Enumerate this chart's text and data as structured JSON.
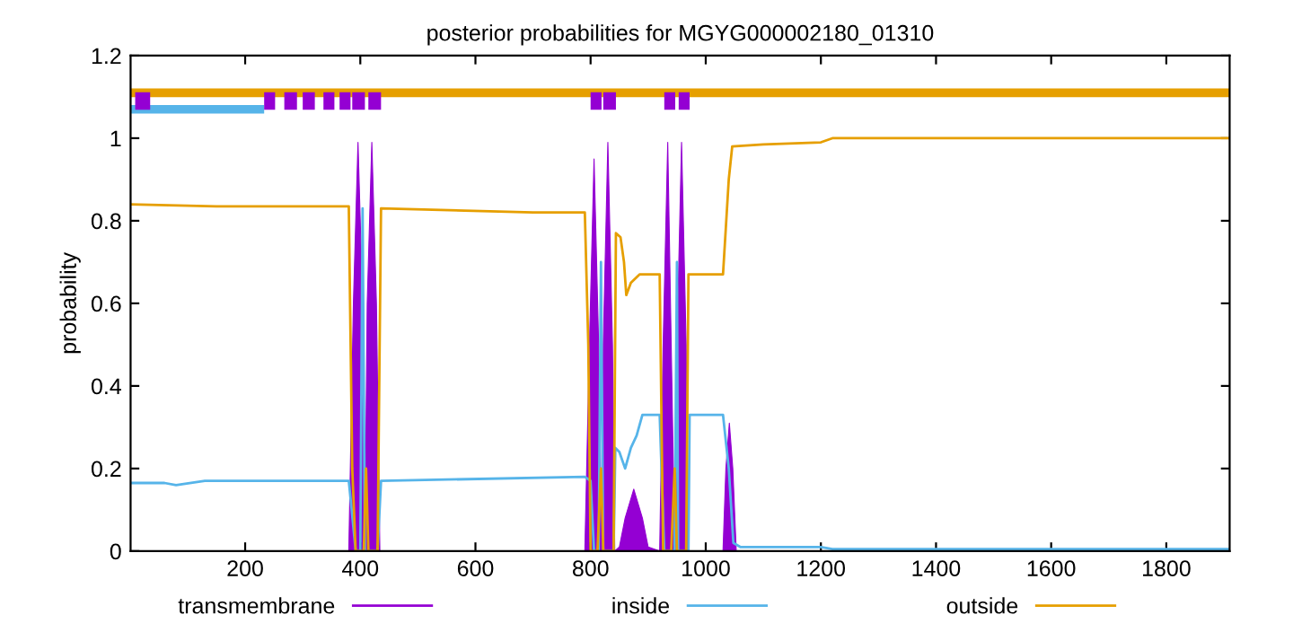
{
  "chart_data": {
    "type": "line",
    "title": "posterior probabilities for MGYG000002180_01310",
    "ylabel": "probability",
    "xlim": [
      1,
      1910
    ],
    "xticks": [
      200,
      400,
      600,
      800,
      1000,
      1200,
      1400,
      1600,
      1800
    ],
    "ylim": [
      0,
      1.2
    ],
    "yticks": [
      0,
      0.2,
      0.4,
      0.6,
      0.8,
      1,
      1.2
    ],
    "grid": false,
    "legend": "bottom",
    "series": [
      {
        "name": "transmembrane",
        "type": "area",
        "color": "#9400d3",
        "x": [
          1,
          380,
          388,
          396,
          404,
          408,
          412,
          420,
          428,
          434,
          790,
          798,
          806,
          814,
          818,
          822,
          830,
          838,
          842,
          850,
          860,
          875,
          890,
          900,
          920,
          926,
          934,
          940,
          946,
          950,
          958,
          966,
          970,
          1030,
          1035,
          1041,
          1047,
          1053,
          1910
        ],
        "values": [
          0,
          0,
          0.6,
          0.99,
          0.6,
          0.02,
          0.6,
          0.99,
          0.6,
          0,
          0,
          0.5,
          0.95,
          0.5,
          0.02,
          0.5,
          0.99,
          0.5,
          0,
          0.01,
          0.08,
          0.15,
          0.08,
          0.01,
          0,
          0.5,
          0.99,
          0.5,
          0.02,
          0.5,
          0.99,
          0.5,
          0,
          0,
          0.2,
          0.31,
          0.2,
          0,
          0
        ]
      },
      {
        "name": "inside",
        "color": "#56b4e9",
        "x": [
          1,
          60,
          80,
          130,
          380,
          385,
          392,
          400,
          404,
          408,
          430,
          436,
          790,
          800,
          806,
          814,
          818,
          822,
          840,
          843,
          850,
          860,
          870,
          880,
          890,
          920,
          928,
          946,
          950,
          952,
          970,
          972,
          1030,
          1040,
          1048,
          1060,
          1200,
          1220,
          1910
        ],
        "values": [
          0.165,
          0.165,
          0.16,
          0.17,
          0.17,
          0.1,
          0,
          0,
          0.83,
          0,
          0,
          0.17,
          0.18,
          0.17,
          0,
          0,
          0.7,
          0,
          0,
          0.25,
          0.24,
          0.2,
          0.25,
          0.28,
          0.33,
          0.33,
          0,
          0,
          0.7,
          0,
          0,
          0.33,
          0.33,
          0.2,
          0.02,
          0.01,
          0.01,
          0.005,
          0.005
        ]
      },
      {
        "name": "outside",
        "color": "#e69f00",
        "x": [
          1,
          150,
          380,
          386,
          392,
          406,
          410,
          414,
          430,
          436,
          700,
          790,
          796,
          800,
          812,
          818,
          822,
          840,
          844,
          852,
          858,
          862,
          870,
          885,
          920,
          926,
          940,
          946,
          950,
          966,
          970,
          1030,
          1040,
          1046,
          1100,
          1200,
          1220,
          1910
        ],
        "values": [
          0.84,
          0.835,
          0.835,
          0.2,
          0,
          0,
          0.2,
          0,
          0,
          0.83,
          0.82,
          0.82,
          0.5,
          0,
          0,
          0.2,
          0,
          0,
          0.77,
          0.76,
          0.7,
          0.62,
          0.65,
          0.67,
          0.67,
          0,
          0,
          0.2,
          0,
          0,
          0.67,
          0.67,
          0.9,
          0.98,
          0.985,
          0.99,
          1.0,
          1.0
        ]
      },
      {
        "color": "#56b4e9",
        "x": [
          1,
          233
        ],
        "values": [
          1.07,
          1.07
        ]
      },
      {
        "color": "#e69f00",
        "x": [
          1,
          1910
        ],
        "values": [
          1.11,
          1.11
        ]
      },
      {
        "color": "#9400d3",
        "x": [
          9,
          35,
          null,
          233,
          252,
          null,
          268,
          290,
          null,
          300,
          321,
          null,
          336,
          355,
          null,
          364,
          383,
          null,
          386,
          408,
          null,
          414,
          436,
          null,
          800,
          819,
          null,
          822,
          844,
          null,
          928,
          947,
          null,
          953,
          972
        ],
        "values": [
          1.09,
          1.09,
          null,
          1.09,
          1.09,
          null,
          1.09,
          1.09,
          null,
          1.09,
          1.09,
          null,
          1.09,
          1.09,
          null,
          1.09,
          1.09,
          null,
          1.09,
          1.09,
          null,
          1.09,
          1.09,
          null,
          1.09,
          1.09,
          null,
          1.09,
          1.09,
          null,
          1.09,
          1.09,
          null,
          1.09,
          1.09
        ]
      }
    ]
  }
}
